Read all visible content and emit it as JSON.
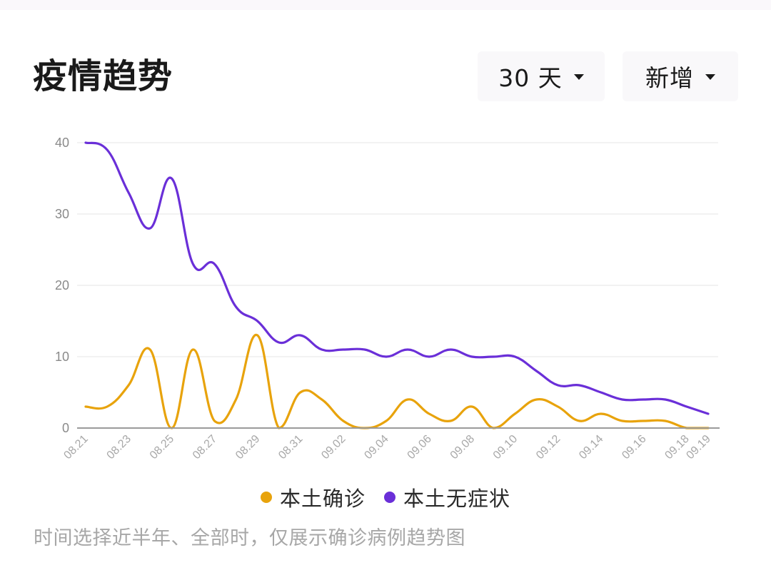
{
  "header": {
    "title": "疫情趋势",
    "range_dropdown": {
      "selected": "30 天"
    },
    "metric_dropdown": {
      "selected": "新增"
    }
  },
  "colors": {
    "local_confirmed": "#e8a30c",
    "local_asymptomatic": "#6a2fd8",
    "grid": "#eeeeee",
    "axis": "#9a9a9a"
  },
  "chart_data": {
    "type": "line",
    "title": "",
    "xlabel": "",
    "ylabel": "",
    "ylim": [
      0,
      40
    ],
    "yticks": [
      0,
      10,
      20,
      30,
      40
    ],
    "grid": true,
    "legend_position": "bottom",
    "x": [
      "08.21",
      "08.22",
      "08.23",
      "08.24",
      "08.25",
      "08.26",
      "08.27",
      "08.28",
      "08.29",
      "08.30",
      "08.31",
      "09.01",
      "09.02",
      "09.03",
      "09.04",
      "09.05",
      "09.06",
      "09.07",
      "09.08",
      "09.09",
      "09.10",
      "09.11",
      "09.12",
      "09.13",
      "09.14",
      "09.15",
      "09.16",
      "09.17",
      "09.18",
      "09.19"
    ],
    "x_tick_labels": [
      "08.21",
      "08.23",
      "08.25",
      "08.27",
      "08.29",
      "08.31",
      "09.02",
      "09.04",
      "09.06",
      "09.08",
      "09.10",
      "09.12",
      "09.14",
      "09.16",
      "09.18",
      "09.19"
    ],
    "series": [
      {
        "name": "本土确诊",
        "color_key": "local_confirmed",
        "values": [
          3,
          3,
          6,
          11,
          0,
          11,
          1,
          4,
          13,
          0,
          5,
          4,
          1,
          0,
          1,
          4,
          2,
          1,
          3,
          0,
          2,
          4,
          3,
          1,
          2,
          1,
          1,
          1,
          0,
          0
        ]
      },
      {
        "name": "本土无症状",
        "color_key": "local_asymptomatic",
        "values": [
          40,
          39,
          33,
          28,
          35,
          23,
          23,
          17,
          15,
          12,
          13,
          11,
          11,
          11,
          10,
          11,
          10,
          11,
          10,
          10,
          10,
          8,
          6,
          6,
          5,
          4,
          4,
          4,
          3,
          2
        ]
      }
    ]
  },
  "legend": {
    "items": [
      {
        "label": "本土确诊"
      },
      {
        "label": "本土无症状"
      }
    ]
  },
  "footnote": "时间选择近半年、全部时，仅展示确诊病例趋势图"
}
